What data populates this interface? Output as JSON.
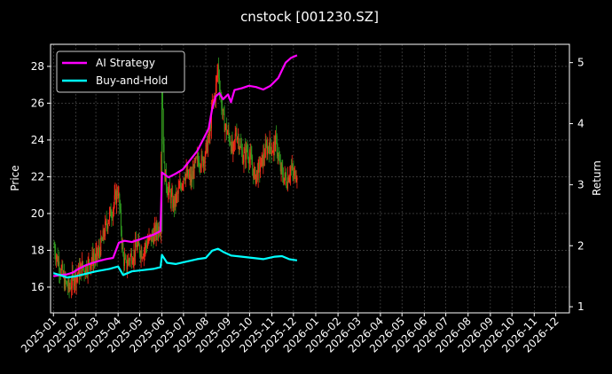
{
  "chart_data": {
    "type": "line",
    "title": "cnstock [001230.SZ]",
    "xlabel": "",
    "ylabel_left": "Price",
    "ylabel_right": "Return",
    "x_ticks": [
      "2025-01",
      "2025-02",
      "2025-03",
      "2025-04",
      "2025-05",
      "2025-06",
      "2025-07",
      "2025-08",
      "2025-09",
      "2025-10",
      "2025-11",
      "2025-12",
      "2026-01",
      "2026-02",
      "2026-03",
      "2026-04",
      "2026-05",
      "2026-06",
      "2026-07",
      "2026-08",
      "2026-09",
      "2026-10",
      "2026-11",
      "2026-12"
    ],
    "xlim": [
      "2024-12-28",
      "2026-12-20"
    ],
    "ylim_left": [
      14.6,
      29.2
    ],
    "y_ticks_left": [
      16,
      18,
      20,
      22,
      24,
      26,
      28
    ],
    "ylim_right": [
      0.9,
      5.3
    ],
    "y_ticks_right": [
      1,
      2,
      3,
      4,
      5
    ],
    "grid": true,
    "legend_position": "top-left",
    "background": "#000000",
    "candlestick": {
      "name": "Price",
      "up_color": "#ff2a1a",
      "down_color": "#2e9a1e",
      "points": [
        [
          "2025-01-02",
          18.2
        ],
        [
          "2025-01-06",
          17.6
        ],
        [
          "2025-01-09",
          17.2
        ],
        [
          "2025-01-13",
          16.8
        ],
        [
          "2025-01-16",
          16.3
        ],
        [
          "2025-01-20",
          16.1
        ],
        [
          "2025-01-23",
          15.9
        ],
        [
          "2025-01-27",
          16.4
        ],
        [
          "2025-02-05",
          16.8
        ],
        [
          "2025-02-10",
          17.1
        ],
        [
          "2025-02-14",
          17.0
        ],
        [
          "2025-02-19",
          17.3
        ],
        [
          "2025-02-24",
          17.5
        ],
        [
          "2025-03-01",
          17.6
        ],
        [
          "2025-03-05",
          17.9
        ],
        [
          "2025-03-10",
          18.5
        ],
        [
          "2025-03-14",
          19.2
        ],
        [
          "2025-03-19",
          19.8
        ],
        [
          "2025-03-24",
          20.2
        ],
        [
          "2025-03-28",
          20.8
        ],
        [
          "2025-04-01",
          21.3
        ],
        [
          "2025-04-04",
          19.8
        ],
        [
          "2025-04-08",
          17.6
        ],
        [
          "2025-04-12",
          17.1
        ],
        [
          "2025-04-17",
          17.6
        ],
        [
          "2025-04-22",
          17.8
        ],
        [
          "2025-04-27",
          18.2
        ],
        [
          "2025-05-05",
          17.9
        ],
        [
          "2025-05-10",
          18.3
        ],
        [
          "2025-05-15",
          18.6
        ],
        [
          "2025-05-20",
          18.8
        ],
        [
          "2025-05-25",
          19.1
        ],
        [
          "2025-05-30",
          19.4
        ],
        [
          "2025-06-01",
          27.5
        ],
        [
          "2025-06-04",
          22.4
        ],
        [
          "2025-06-08",
          21.5
        ],
        [
          "2025-06-12",
          21.0
        ],
        [
          "2025-06-17",
          20.5
        ],
        [
          "2025-06-22",
          20.9
        ],
        [
          "2025-06-27",
          21.5
        ],
        [
          "2025-07-02",
          22.2
        ],
        [
          "2025-07-07",
          22.0
        ],
        [
          "2025-07-12",
          21.8
        ],
        [
          "2025-07-17",
          22.6
        ],
        [
          "2025-07-22",
          23.0
        ],
        [
          "2025-07-27",
          22.8
        ],
        [
          "2025-08-01",
          23.4
        ],
        [
          "2025-08-06",
          24.2
        ],
        [
          "2025-08-10",
          25.8
        ],
        [
          "2025-08-14",
          26.5
        ],
        [
          "2025-08-18",
          28.0
        ],
        [
          "2025-08-22",
          26.2
        ],
        [
          "2025-08-26",
          25.0
        ],
        [
          "2025-08-30",
          24.5
        ],
        [
          "2025-09-04",
          24.0
        ],
        [
          "2025-09-08",
          23.2
        ],
        [
          "2025-09-12",
          24.5
        ],
        [
          "2025-09-17",
          23.8
        ],
        [
          "2025-09-22",
          23.0
        ],
        [
          "2025-09-27",
          23.5
        ],
        [
          "2025-10-03",
          22.8
        ],
        [
          "2025-10-08",
          22.0
        ],
        [
          "2025-10-13",
          22.3
        ],
        [
          "2025-10-18",
          22.8
        ],
        [
          "2025-10-23",
          23.4
        ],
        [
          "2025-10-28",
          23.7
        ],
        [
          "2025-11-02",
          23.5
        ],
        [
          "2025-11-07",
          23.9
        ],
        [
          "2025-11-12",
          22.5
        ],
        [
          "2025-11-17",
          22.0
        ],
        [
          "2025-11-22",
          21.8
        ],
        [
          "2025-11-27",
          22.5
        ],
        [
          "2025-12-02",
          22.0
        ],
        [
          "2025-12-06",
          22.3
        ]
      ]
    },
    "series": [
      {
        "name": "AI Strategy",
        "color": "#ff00ff",
        "axis": "right",
        "points": [
          [
            "2025-01-01",
            1.5
          ],
          [
            "2025-01-10",
            1.52
          ],
          [
            "2025-01-20",
            1.53
          ],
          [
            "2025-01-28",
            1.56
          ],
          [
            "2025-02-05",
            1.62
          ],
          [
            "2025-02-15",
            1.68
          ],
          [
            "2025-02-25",
            1.72
          ],
          [
            "2025-03-05",
            1.75
          ],
          [
            "2025-03-15",
            1.78
          ],
          [
            "2025-03-25",
            1.8
          ],
          [
            "2025-04-02",
            2.05
          ],
          [
            "2025-04-10",
            2.08
          ],
          [
            "2025-04-20",
            2.06
          ],
          [
            "2025-04-30",
            2.1
          ],
          [
            "2025-05-10",
            2.14
          ],
          [
            "2025-05-20",
            2.18
          ],
          [
            "2025-05-30",
            2.24
          ],
          [
            "2025-06-01",
            3.2
          ],
          [
            "2025-06-10",
            3.12
          ],
          [
            "2025-06-20",
            3.18
          ],
          [
            "2025-06-30",
            3.25
          ],
          [
            "2025-07-10",
            3.4
          ],
          [
            "2025-07-20",
            3.55
          ],
          [
            "2025-07-30",
            3.78
          ],
          [
            "2025-08-05",
            3.92
          ],
          [
            "2025-08-10",
            4.25
          ],
          [
            "2025-08-15",
            4.45
          ],
          [
            "2025-08-20",
            4.5
          ],
          [
            "2025-08-25",
            4.4
          ],
          [
            "2025-09-01",
            4.48
          ],
          [
            "2025-09-05",
            4.35
          ],
          [
            "2025-09-10",
            4.55
          ],
          [
            "2025-09-20",
            4.58
          ],
          [
            "2025-09-30",
            4.62
          ],
          [
            "2025-10-10",
            4.6
          ],
          [
            "2025-10-20",
            4.56
          ],
          [
            "2025-10-30",
            4.62
          ],
          [
            "2025-11-10",
            4.75
          ],
          [
            "2025-11-20",
            5.0
          ],
          [
            "2025-11-28",
            5.08
          ],
          [
            "2025-12-06",
            5.12
          ]
        ]
      },
      {
        "name": "Buy-and-Hold",
        "color": "#00ffff",
        "axis": "right",
        "points": [
          [
            "2025-01-01",
            1.55
          ],
          [
            "2025-01-10",
            1.52
          ],
          [
            "2025-01-20",
            1.48
          ],
          [
            "2025-02-01",
            1.5
          ],
          [
            "2025-02-15",
            1.54
          ],
          [
            "2025-03-01",
            1.58
          ],
          [
            "2025-03-20",
            1.62
          ],
          [
            "2025-04-01",
            1.66
          ],
          [
            "2025-04-08",
            1.52
          ],
          [
            "2025-04-20",
            1.58
          ],
          [
            "2025-05-05",
            1.6
          ],
          [
            "2025-05-20",
            1.62
          ],
          [
            "2025-05-30",
            1.65
          ],
          [
            "2025-06-01",
            1.85
          ],
          [
            "2025-06-08",
            1.72
          ],
          [
            "2025-06-20",
            1.7
          ],
          [
            "2025-07-05",
            1.74
          ],
          [
            "2025-07-20",
            1.78
          ],
          [
            "2025-08-01",
            1.8
          ],
          [
            "2025-08-10",
            1.92
          ],
          [
            "2025-08-18",
            1.95
          ],
          [
            "2025-08-25",
            1.9
          ],
          [
            "2025-09-05",
            1.84
          ],
          [
            "2025-09-20",
            1.82
          ],
          [
            "2025-10-05",
            1.8
          ],
          [
            "2025-10-20",
            1.78
          ],
          [
            "2025-11-05",
            1.82
          ],
          [
            "2025-11-15",
            1.83
          ],
          [
            "2025-11-25",
            1.78
          ],
          [
            "2025-12-06",
            1.76
          ]
        ]
      }
    ]
  }
}
